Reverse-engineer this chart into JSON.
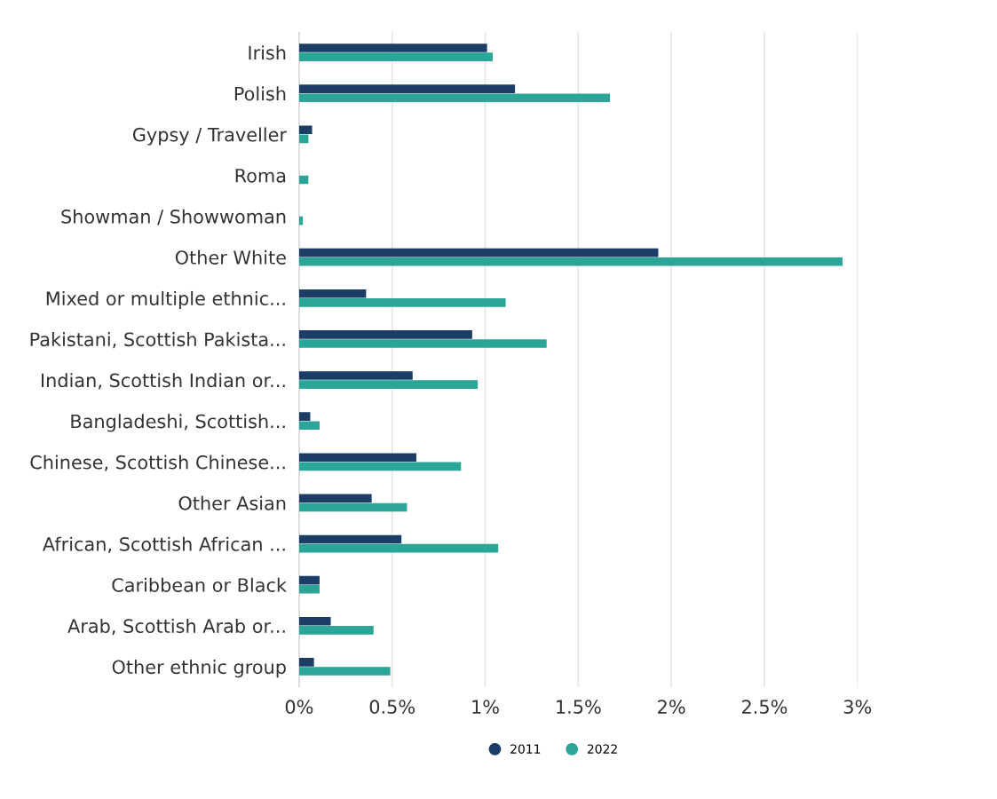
{
  "chart_data": {
    "type": "bar",
    "orientation": "horizontal",
    "categories": [
      "Irish",
      "Polish",
      "Gypsy / Traveller",
      "Roma",
      "Showman / Showwoman",
      "Other White",
      "Mixed or multiple ethnic...",
      "Pakistani, Scottish Pakista...",
      "Indian, Scottish Indian or...",
      "Bangladeshi, Scottish...",
      "Chinese, Scottish Chinese...",
      "Other Asian",
      "African, Scottish African ...",
      "Caribbean or Black",
      "Arab, Scottish Arab or...",
      "Other ethnic group"
    ],
    "series": [
      {
        "name": "2011",
        "color": "#1b3d66",
        "values": [
          1.01,
          1.16,
          0.07,
          0,
          0,
          1.93,
          0.36,
          0.93,
          0.61,
          0.06,
          0.63,
          0.39,
          0.55,
          0.11,
          0.17,
          0.08
        ]
      },
      {
        "name": "2022",
        "color": "#2aa598",
        "values": [
          1.04,
          1.67,
          0.05,
          0.05,
          0.02,
          2.92,
          1.11,
          1.33,
          0.96,
          0.11,
          0.87,
          0.58,
          1.07,
          0.11,
          0.4,
          0.49
        ]
      }
    ],
    "xlim": [
      0,
      3
    ],
    "xticks": [
      {
        "value": 0,
        "label": "0%"
      },
      {
        "value": 0.5,
        "label": "0.5%"
      },
      {
        "value": 1,
        "label": "1%"
      },
      {
        "value": 1.5,
        "label": "1.5%"
      },
      {
        "value": 2,
        "label": "2%"
      },
      {
        "value": 2.5,
        "label": "2.5%"
      },
      {
        "value": 3,
        "label": "3%"
      }
    ],
    "grid": "x",
    "legend": "bottom",
    "marker": "circle"
  }
}
